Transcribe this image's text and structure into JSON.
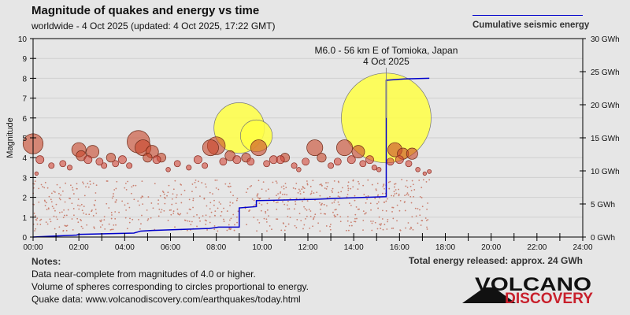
{
  "header": {
    "title": "Magnitude of quakes and energy vs time",
    "subtitle": "worldwide -  4 Oct 2025 (updated: 4 Oct 2025, 17:22 GMT)"
  },
  "legend": {
    "label": "Cumulative seismic energy",
    "color": "#0000cc"
  },
  "notes": {
    "heading": "Notes:",
    "lines": [
      "Data near-complete from magnitudes of 4.0 or higher.",
      "Volume of spheres corresponding to circles proportional to energy.",
      "Quake data: www.volcanodiscovery.com/earthquakes/today.html"
    ]
  },
  "total_energy": "Total energy released: approx. 24 GWh",
  "logo": {
    "line1": "VOLCANO",
    "line2": "DISCOVERY"
  },
  "chart_data": {
    "type": "scatter",
    "title": "Magnitude of quakes and energy vs time",
    "ylabel": "Magnitude",
    "xlim": [
      0,
      24
    ],
    "ylim": [
      0,
      10
    ],
    "y2lim": [
      0,
      30
    ],
    "x_ticks": [
      "00:00",
      "02:00",
      "04:00",
      "06:00",
      "08:00",
      "10:00",
      "12:00",
      "14:00",
      "16:00",
      "18:00",
      "20:00",
      "22:00",
      "24:00"
    ],
    "y_ticks": [
      "0",
      "1",
      "2",
      "3",
      "4",
      "5",
      "6",
      "7",
      "8",
      "9",
      "10"
    ],
    "y2_ticks": [
      "0 GWh",
      "5 GWh",
      "10 GWh",
      "15 GWh",
      "20 GWh",
      "25 GWh",
      "30 GWh"
    ],
    "grid": true,
    "annotation": {
      "line1": "M6.0 - 56 km E of Tomioka, Japan",
      "line2": "4 Oct 2025",
      "x": 15.42,
      "mag": 6.0
    },
    "quakes": [
      [
        0.0,
        4.7
      ],
      [
        0.3,
        3.9
      ],
      [
        0.15,
        3.2
      ],
      [
        0.8,
        3.6
      ],
      [
        1.3,
        3.7
      ],
      [
        1.6,
        3.5
      ],
      [
        2.0,
        4.4
      ],
      [
        2.1,
        4.1
      ],
      [
        2.4,
        3.9
      ],
      [
        2.6,
        4.3
      ],
      [
        2.9,
        3.8
      ],
      [
        3.1,
        3.6
      ],
      [
        3.4,
        4.0
      ],
      [
        3.6,
        3.7
      ],
      [
        3.9,
        3.9
      ],
      [
        4.2,
        3.6
      ],
      [
        4.6,
        4.8
      ],
      [
        4.8,
        4.5
      ],
      [
        5.0,
        4.0
      ],
      [
        5.2,
        4.3
      ],
      [
        5.4,
        3.9
      ],
      [
        5.6,
        4.0
      ],
      [
        5.9,
        3.4
      ],
      [
        6.3,
        3.7
      ],
      [
        6.8,
        3.5
      ],
      [
        7.2,
        3.9
      ],
      [
        7.5,
        3.6
      ],
      [
        7.75,
        4.5
      ],
      [
        8.0,
        4.6
      ],
      [
        8.3,
        3.8
      ],
      [
        8.6,
        4.1
      ],
      [
        8.9,
        3.9
      ],
      [
        9.0,
        5.5
      ],
      [
        9.3,
        4.0
      ],
      [
        9.5,
        3.8
      ],
      [
        9.75,
        5.1
      ],
      [
        9.85,
        4.5
      ],
      [
        10.2,
        3.7
      ],
      [
        10.5,
        3.9
      ],
      [
        10.8,
        3.9
      ],
      [
        11.0,
        4.0
      ],
      [
        11.4,
        3.6
      ],
      [
        11.6,
        3.4
      ],
      [
        11.9,
        3.8
      ],
      [
        12.3,
        4.5
      ],
      [
        12.6,
        4.0
      ],
      [
        13.0,
        3.6
      ],
      [
        13.3,
        3.8
      ],
      [
        13.6,
        4.5
      ],
      [
        13.9,
        3.9
      ],
      [
        14.2,
        4.3
      ],
      [
        14.4,
        3.7
      ],
      [
        14.7,
        3.9
      ],
      [
        14.9,
        3.5
      ],
      [
        15.1,
        3.4
      ],
      [
        15.42,
        6.0
      ],
      [
        15.6,
        3.8
      ],
      [
        15.8,
        4.4
      ],
      [
        16.0,
        3.9
      ],
      [
        16.15,
        4.2
      ],
      [
        16.4,
        3.7
      ],
      [
        16.55,
        4.2
      ],
      [
        16.8,
        3.4
      ],
      [
        17.1,
        3.2
      ],
      [
        17.3,
        3.3
      ]
    ],
    "cumulative_energy_gwh": [
      [
        0,
        0
      ],
      [
        1.9,
        0.3
      ],
      [
        2.0,
        0.4
      ],
      [
        4.4,
        0.6
      ],
      [
        4.7,
        0.9
      ],
      [
        5.2,
        1.0
      ],
      [
        7.7,
        1.3
      ],
      [
        8.1,
        1.5
      ],
      [
        9.0,
        1.5
      ],
      [
        9.0,
        4.4
      ],
      [
        9.75,
        4.6
      ],
      [
        9.75,
        5.5
      ],
      [
        12.3,
        5.7
      ],
      [
        13.6,
        5.9
      ],
      [
        15.4,
        6.1
      ],
      [
        15.42,
        6.1
      ],
      [
        15.42,
        23.7
      ],
      [
        15.8,
        23.8
      ],
      [
        16.2,
        23.9
      ],
      [
        17.3,
        24.0
      ]
    ],
    "colors": {
      "large": "#ffff44",
      "medium": "#c8462a",
      "small": "#d44a3a",
      "energy": "#0000cc"
    }
  }
}
